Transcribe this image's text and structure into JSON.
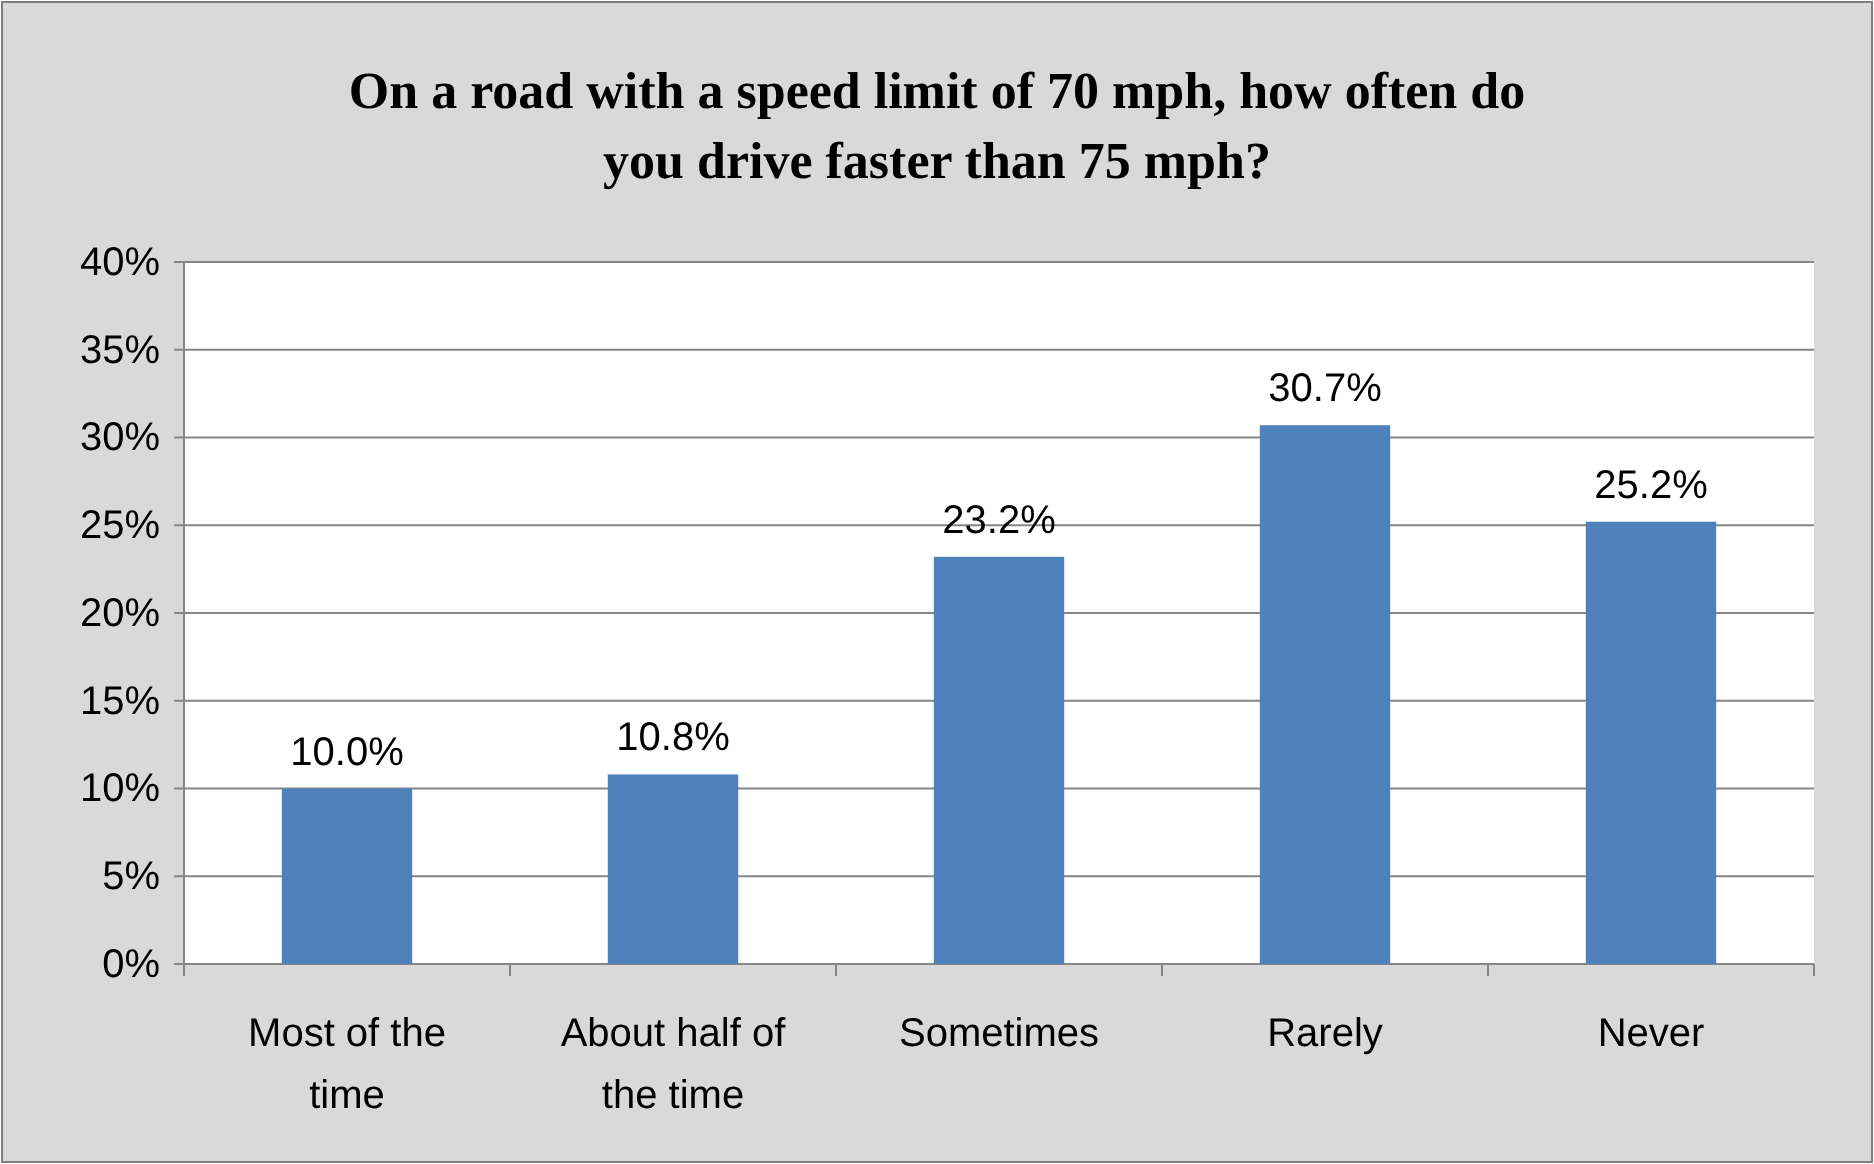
{
  "chart_data": {
    "type": "bar",
    "title": "On a road with a speed limit of 70 mph, how often do you drive faster than 75 mph?",
    "categories": [
      "Most of the time",
      "About half of the time",
      "Sometimes",
      "Rarely",
      "Never"
    ],
    "values": [
      10.0,
      10.8,
      23.2,
      30.7,
      25.2
    ],
    "value_labels": [
      "10.0%",
      "10.8%",
      "23.2%",
      "30.7%",
      "25.2%"
    ],
    "color": "#4f81bd",
    "ylim": [
      0,
      40
    ],
    "yticks": [
      {
        "value": 0,
        "label": "0%"
      },
      {
        "value": 5,
        "label": "5%"
      },
      {
        "value": 10,
        "label": "10%"
      },
      {
        "value": 15,
        "label": "15%"
      },
      {
        "value": 20,
        "label": "20%"
      },
      {
        "value": 25,
        "label": "25%"
      },
      {
        "value": 30,
        "label": "30%"
      },
      {
        "value": 35,
        "label": "35%"
      },
      {
        "value": 40,
        "label": "40%"
      }
    ],
    "grid": "y"
  }
}
